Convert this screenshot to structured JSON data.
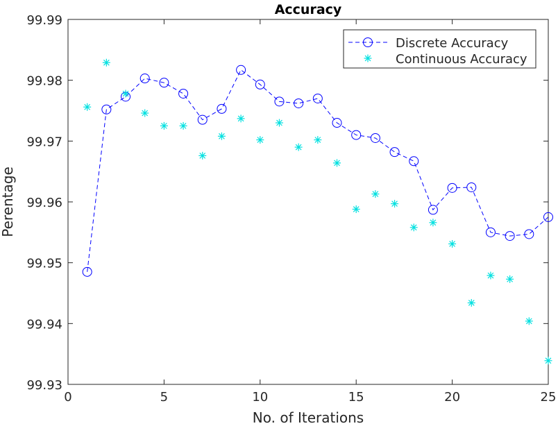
{
  "chart_data": {
    "type": "line",
    "title": "Accuracy",
    "xlabel": "No. of Iterations",
    "ylabel": "Perentage",
    "xlim": [
      0,
      25
    ],
    "ylim": [
      99.93,
      99.99
    ],
    "x_ticks": [
      0,
      5,
      10,
      15,
      20,
      25
    ],
    "y_ticks": [
      99.93,
      99.94,
      99.95,
      99.96,
      99.97,
      99.98,
      99.99
    ],
    "x_tick_labels": [
      "0",
      "5",
      "10",
      "15",
      "20",
      "25"
    ],
    "y_tick_labels": [
      "99.93",
      "99.94",
      "99.95",
      "99.96",
      "99.97",
      "99.98",
      "99.99"
    ],
    "grid": false,
    "legend_position": "top-right",
    "x": [
      1,
      2,
      3,
      4,
      5,
      6,
      7,
      8,
      9,
      10,
      11,
      12,
      13,
      14,
      15,
      16,
      17,
      18,
      19,
      20,
      21,
      22,
      23,
      24,
      25
    ],
    "series": [
      {
        "name": "Discrete Accuracy",
        "style": "dashed-line-circle-markers",
        "color": "#0000ff",
        "values": [
          99.9485,
          99.9752,
          99.9773,
          99.9803,
          99.9796,
          99.9778,
          99.9735,
          99.9753,
          99.9817,
          99.9793,
          99.9765,
          99.9762,
          99.977,
          99.973,
          99.971,
          99.9705,
          99.9682,
          99.9667,
          99.9587,
          99.9623,
          99.9624,
          99.955,
          99.9544,
          99.9547,
          99.9575
        ]
      },
      {
        "name": "Continuous Accuracy",
        "style": "star-markers",
        "color": "#00e0e0",
        "values": [
          99.9756,
          99.9829,
          99.9778,
          99.9746,
          99.9725,
          99.9725,
          99.9676,
          99.9708,
          99.9737,
          99.9702,
          99.973,
          99.969,
          99.9702,
          99.9664,
          99.9588,
          99.9613,
          99.9597,
          99.9558,
          99.9566,
          99.9531,
          99.9434,
          99.9479,
          99.9473,
          99.9404,
          99.9339
        ]
      }
    ]
  }
}
